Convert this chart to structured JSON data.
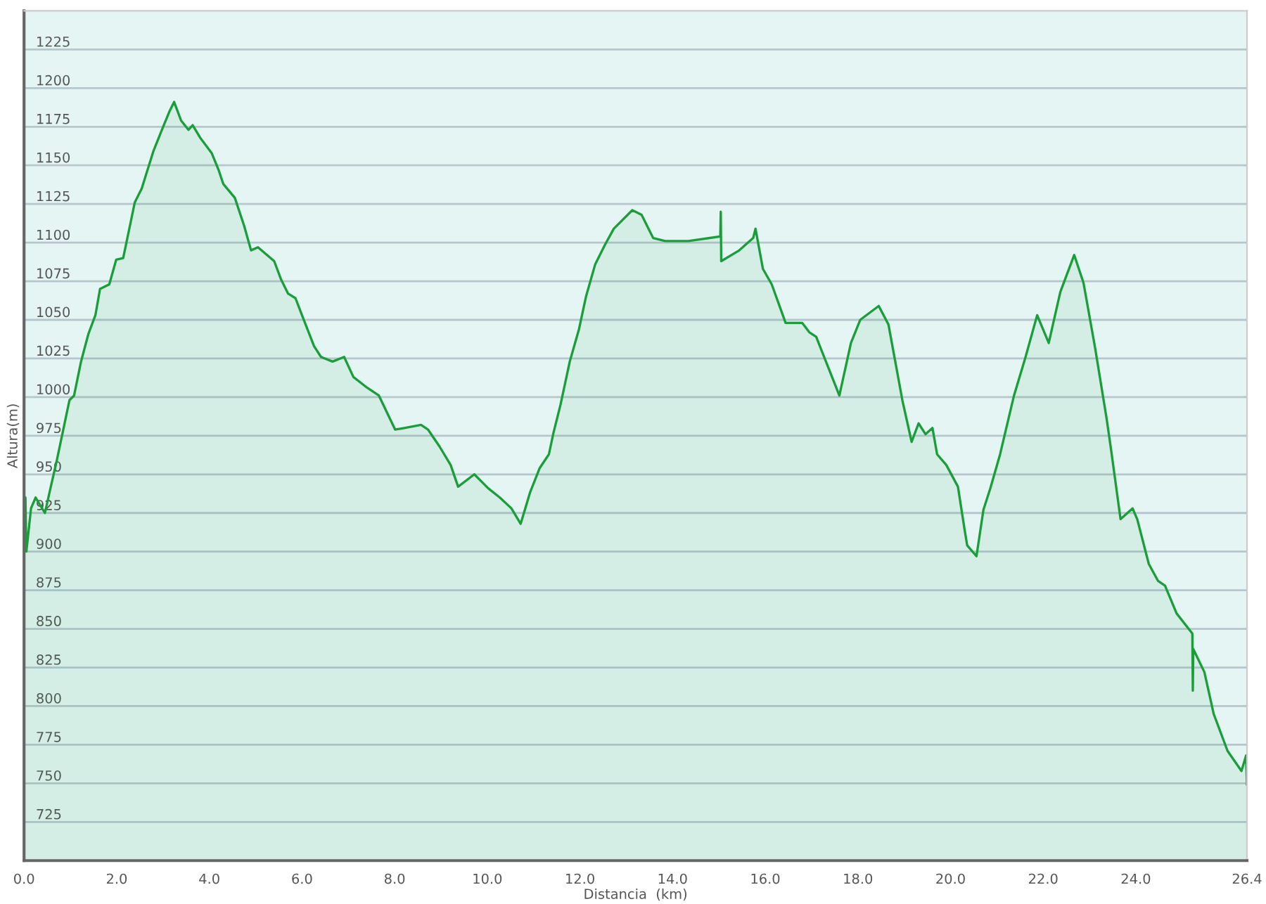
{
  "chart_data": {
    "type": "area",
    "xlabel": "Distancia  (km)",
    "ylabel": "Altura(m)",
    "xlim": [
      0,
      26.4
    ],
    "ylim": [
      700,
      1250
    ],
    "xticks": [
      {
        "value": 0,
        "label": "0.0"
      },
      {
        "value": 2,
        "label": "2.0"
      },
      {
        "value": 4,
        "label": "4.0"
      },
      {
        "value": 6,
        "label": "6.0"
      },
      {
        "value": 8,
        "label": "8.0"
      },
      {
        "value": 10,
        "label": "10.0"
      },
      {
        "value": 12,
        "label": "12.0"
      },
      {
        "value": 14,
        "label": "14.0"
      },
      {
        "value": 16,
        "label": "16.0"
      },
      {
        "value": 18,
        "label": "18.0"
      },
      {
        "value": 20,
        "label": "20.0"
      },
      {
        "value": 22,
        "label": "22.0"
      },
      {
        "value": 24,
        "label": "24.0"
      },
      {
        "value": 26.4,
        "label": "26.4"
      }
    ],
    "yticks": [
      725,
      750,
      775,
      800,
      825,
      850,
      875,
      900,
      925,
      950,
      975,
      1000,
      1025,
      1050,
      1075,
      1100,
      1125,
      1150,
      1175,
      1200,
      1225
    ],
    "grid": "y",
    "series": [
      {
        "color": "#1a9e3a",
        "x": [
          0.0,
          0.03,
          0.05,
          0.15,
          0.25,
          0.35,
          0.45,
          0.6,
          0.7,
          0.98,
          1.08,
          1.23,
          1.39,
          1.54,
          1.64,
          1.84,
          1.99,
          2.14,
          2.39,
          2.54,
          2.79,
          2.99,
          3.14,
          3.24,
          3.39,
          3.55,
          3.64,
          3.8,
          4.05,
          4.2,
          4.3,
          4.55,
          4.75,
          4.9,
          5.05,
          5.4,
          5.55,
          5.7,
          5.86,
          6.0,
          6.26,
          6.41,
          6.66,
          6.91,
          7.11,
          7.41,
          7.66,
          8.01,
          8.21,
          8.57,
          8.72,
          8.97,
          9.21,
          9.37,
          9.72,
          10.02,
          10.27,
          10.52,
          10.72,
          10.82,
          10.92,
          11.13,
          11.33,
          11.43,
          11.58,
          11.78,
          11.98,
          12.13,
          12.33,
          12.53,
          12.73,
          13.13,
          13.33,
          13.58,
          13.84,
          14.34,
          15.03,
          15.04,
          15.05,
          15.44,
          15.74,
          15.79,
          15.95,
          16.14,
          16.44,
          16.8,
          16.95,
          17.1,
          17.35,
          17.6,
          17.85,
          18.05,
          18.45,
          18.66,
          18.96,
          19.16,
          19.31,
          19.46,
          19.61,
          19.71,
          19.91,
          20.16,
          20.31,
          20.36,
          20.56,
          20.71,
          20.86,
          21.07,
          21.37,
          21.62,
          21.87,
          22.12,
          22.37,
          22.67,
          22.87,
          23.12,
          23.37,
          23.47,
          23.67,
          23.93,
          24.03,
          24.28,
          24.48,
          24.63,
          24.88,
          25.22,
          25.23,
          25.24,
          25.48,
          25.68,
          25.98,
          26.28,
          26.38,
          26.4
        ],
        "values": [
          900,
          935,
          900,
          928,
          935,
          930,
          925,
          945,
          958,
          998,
          1001,
          1023,
          1041,
          1053,
          1070,
          1073,
          1089,
          1090,
          1126,
          1135,
          1159,
          1174,
          1185,
          1191,
          1179,
          1173,
          1176,
          1168,
          1158,
          1147,
          1138,
          1129,
          1111,
          1095,
          1097,
          1088,
          1076,
          1067,
          1064,
          1053,
          1033,
          1026,
          1023,
          1026,
          1013,
          1006,
          1001,
          979,
          980,
          982,
          979,
          968,
          956,
          942,
          950,
          941,
          935,
          928,
          918,
          928,
          938,
          954,
          963,
          977,
          995,
          1023,
          1044,
          1065,
          1086,
          1098,
          1109,
          1121,
          1118,
          1103,
          1101,
          1101,
          1104,
          1120,
          1088,
          1095,
          1103,
          1109,
          1083,
          1073,
          1048,
          1048,
          1042,
          1039,
          1020,
          1001,
          1035,
          1050,
          1059,
          1047,
          998,
          971,
          983,
          976,
          980,
          963,
          956,
          942,
          913,
          904,
          897,
          927,
          941,
          963,
          1001,
          1026,
          1053,
          1035,
          1068,
          1092,
          1074,
          1032,
          986,
          965,
          921,
          928,
          921,
          892,
          881,
          878,
          860,
          847,
          810,
          837,
          822,
          795,
          771,
          758,
          768,
          749
        ]
      }
    ]
  }
}
